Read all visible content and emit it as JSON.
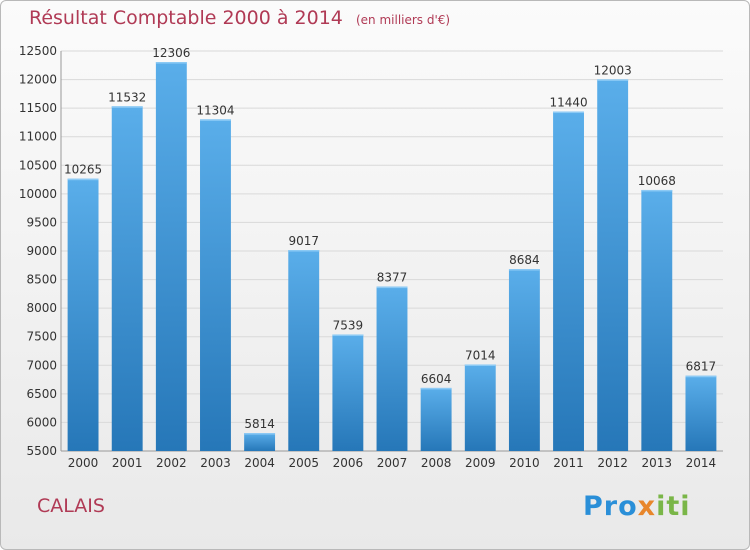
{
  "title": "Résultat Comptable 2000 à 2014",
  "subtitle": "(en milliers d'€)",
  "city": "CALAIS",
  "logo_text": "Proxiti",
  "colors": {
    "title": "#b03a55",
    "bar_light": "#5aaeea",
    "bar_dark": "#2677b8",
    "grid": "#d9d9d9",
    "axis_text": "#333333"
  },
  "chart_data": {
    "type": "bar",
    "title": "Résultat Comptable 2000 à 2014",
    "subtitle": "(en milliers d'€)",
    "xlabel": "",
    "ylabel": "",
    "categories": [
      "2000",
      "2001",
      "2002",
      "2003",
      "2004",
      "2005",
      "2006",
      "2007",
      "2008",
      "2009",
      "2010",
      "2011",
      "2012",
      "2013",
      "2014"
    ],
    "values": [
      10265,
      11532,
      12306,
      11304,
      5814,
      9017,
      7539,
      8377,
      6604,
      7014,
      8684,
      11440,
      12003,
      10068,
      6817
    ],
    "ylim": [
      5500,
      12500
    ],
    "yticks": [
      5500,
      6000,
      6500,
      7000,
      7500,
      8000,
      8500,
      9000,
      9500,
      10000,
      10500,
      11000,
      11500,
      12000,
      12500
    ],
    "grid": true,
    "legend": "none"
  }
}
